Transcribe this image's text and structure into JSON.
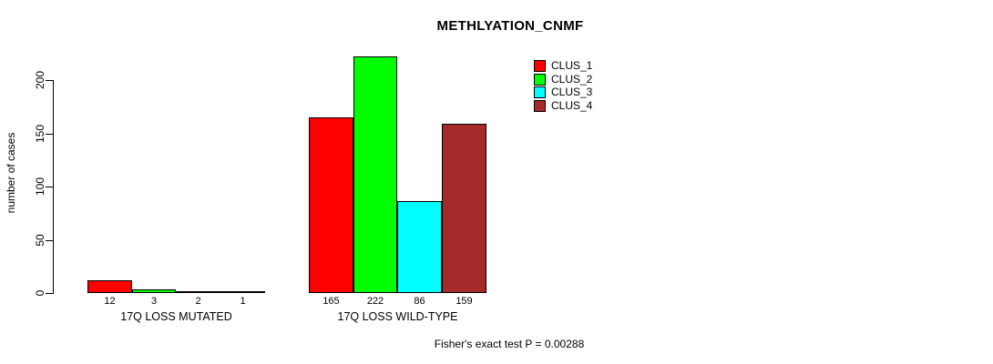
{
  "title": "METHLYATION_CNMF",
  "ylabel": "number of cases",
  "footer": "Fisher's exact test P = 0.00288",
  "chart_data": {
    "type": "bar",
    "title": "METHLYATION_CNMF",
    "xlabel": "",
    "ylabel": "number of cases",
    "ylim": [
      0,
      234
    ],
    "yticks": [
      0,
      50,
      100,
      150,
      200
    ],
    "grid": false,
    "legend_position": "top-right",
    "categories": [
      "17Q LOSS MUTATED",
      "17Q LOSS WILD-TYPE"
    ],
    "series": [
      {
        "name": "CLUS_1",
        "color": "#ff0000",
        "values": [
          12,
          165
        ]
      },
      {
        "name": "CLUS_2",
        "color": "#00ff00",
        "values": [
          3,
          222
        ]
      },
      {
        "name": "CLUS_3",
        "color": "#00ffff",
        "values": [
          2,
          86
        ]
      },
      {
        "name": "CLUS_4",
        "color": "#a52a2a",
        "values": [
          1,
          159
        ]
      }
    ],
    "bar_value_labels": [
      [
        "12",
        "3",
        "2",
        "1"
      ],
      [
        "165",
        "222",
        "86",
        "159"
      ]
    ],
    "annotation": "Fisher's exact test P = 0.00288"
  }
}
